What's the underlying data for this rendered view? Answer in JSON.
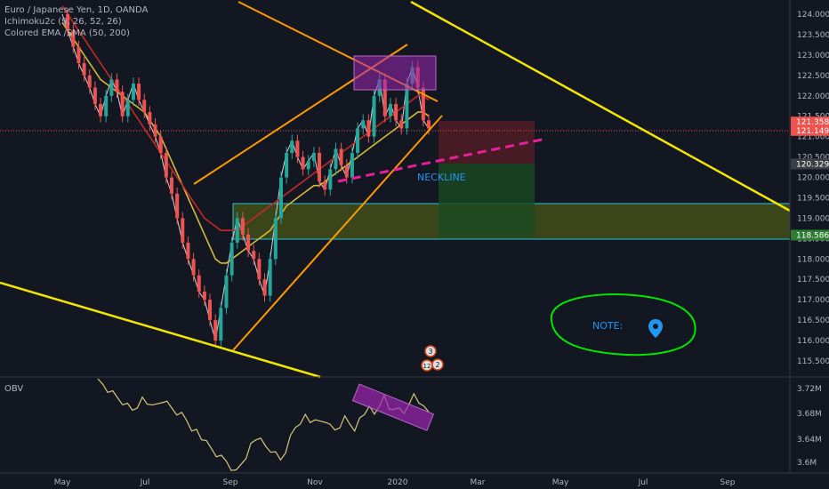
{
  "legend": {
    "title": "Euro / Japanese Yen, 1D, OANDA",
    "ichimoku": "Ichimoku2c (9, 26, 52, 26)",
    "ema_sma": "Colored EMA /SMA (50, 200)"
  },
  "obv_label": "OBV",
  "annotations": {
    "neckline": "NECKLINE",
    "note": "NOTE:",
    "event_badges": [
      "3",
      "12",
      "2"
    ]
  },
  "colors": {
    "background": "#131722",
    "yellow_trend": "#f2e600",
    "orange_channel": "#ff9800",
    "neckline": "#e91e9b",
    "zone": "#5b6b12",
    "stop_zone": "#5a1e24",
    "target_zone": "#1b4a22",
    "rectangle": "#9c27b0",
    "price_line": "#ef5350",
    "note_circle": "#00e600",
    "note_text": "#2196f3",
    "neckline_text": "#2196f3"
  },
  "chart_data": {
    "type": "line",
    "title": "Euro / Japanese Yen, 1D, OANDA",
    "xlabel": "",
    "ylabel": "",
    "x_ticks": [
      "May",
      "Jul",
      "Sep",
      "Nov",
      "2020",
      "Mar",
      "May",
      "Jul",
      "Sep"
    ],
    "y_ticks": [
      "124.000",
      "123.500",
      "123.000",
      "122.500",
      "122.000",
      "121.500",
      "121.000",
      "120.500",
      "120.000",
      "119.500",
      "119.000",
      "118.500",
      "118.000",
      "117.500",
      "117.000",
      "116.500",
      "116.000",
      "115.500"
    ],
    "ylim": [
      115.3,
      124.2
    ],
    "price_labels": [
      {
        "value": 121.358,
        "text": "121.358",
        "color": "#ef5350"
      },
      {
        "value": 121.149,
        "text": "121.149",
        "color": "#ef5350"
      },
      {
        "value": 120.329,
        "text": "120.329",
        "color": "#3c3f48"
      },
      {
        "value": 118.586,
        "text": "118.586",
        "color": "#2e7d32"
      }
    ],
    "obv": {
      "y_ticks": [
        "3.72M",
        "3.68M",
        "3.64M",
        "3.6M"
      ],
      "ylim": [
        3.595,
        3.735
      ]
    },
    "series": [
      {
        "name": "EUR/JPY close",
        "color": "#d1d4dc",
        "values": [
          124.0,
          123.6,
          123.2,
          122.8,
          122.5,
          122.2,
          121.8,
          121.5,
          122.0,
          122.4,
          122.1,
          121.5,
          121.9,
          122.3,
          121.9,
          121.6,
          121.3,
          121.0,
          120.6,
          120.0,
          119.6,
          119.0,
          118.4,
          118.0,
          117.6,
          117.2,
          117.0,
          116.5,
          116.0,
          116.8,
          117.6,
          118.4,
          119.0,
          118.6,
          118.2,
          118.0,
          117.5,
          117.1,
          118.0,
          119.0,
          120.0,
          120.6,
          120.9,
          120.5,
          120.2,
          120.4,
          120.6,
          119.9,
          119.7,
          120.2,
          120.7,
          120.3,
          120.0,
          120.6,
          121.2,
          121.4,
          121.0,
          122.0,
          122.4,
          121.5,
          121.8,
          121.4,
          121.2,
          122.3,
          122.7,
          122.2,
          121.4,
          121.2
        ]
      },
      {
        "name": "EMA 50",
        "color": "#d4b83a",
        "values": [
          123.8,
          123.6,
          123.4,
          123.2,
          123.0,
          122.8,
          122.6,
          122.4,
          122.3,
          122.2,
          122.1,
          122.0,
          121.9,
          121.8,
          121.7,
          121.6,
          121.4,
          121.2,
          121.0,
          120.7,
          120.4,
          120.1,
          119.8,
          119.5,
          119.2,
          118.9,
          118.6,
          118.3,
          118.0,
          117.9,
          117.9,
          118.0,
          118.1,
          118.2,
          118.3,
          118.4,
          118.5,
          118.6,
          118.7,
          118.9,
          119.1,
          119.3,
          119.4,
          119.5,
          119.6,
          119.7,
          119.8,
          119.8,
          119.9,
          120.0,
          120.1,
          120.2,
          120.3,
          120.4,
          120.5,
          120.6,
          120.7,
          120.8,
          120.9,
          121.0,
          121.1,
          121.2,
          121.3,
          121.4,
          121.5,
          121.6,
          121.6,
          121.5
        ]
      },
      {
        "name": "SMA 200",
        "color": "#c62828",
        "values": [
          124.2,
          124.0,
          123.8,
          123.6,
          123.4,
          123.2,
          123.0,
          122.8,
          122.6,
          122.4,
          122.2,
          122.0,
          121.8,
          121.6,
          121.4,
          121.2,
          121.0,
          120.8,
          120.6,
          120.4,
          120.2,
          120.0,
          119.8,
          119.6,
          119.4,
          119.2,
          119.0,
          118.9,
          118.8,
          118.7,
          118.7,
          118.7,
          118.7,
          118.8,
          118.9,
          119.0,
          119.1,
          119.2,
          119.3,
          119.4,
          119.5,
          119.6,
          119.7,
          119.8,
          119.9,
          120.0,
          120.1,
          120.2,
          120.3,
          120.4,
          120.5,
          120.6,
          120.7,
          120.8,
          120.9,
          121.0,
          121.1,
          121.2,
          121.3,
          121.4,
          121.5,
          121.6,
          121.7,
          121.8,
          121.9,
          122.0,
          122.0,
          121.9
        ]
      }
    ]
  }
}
